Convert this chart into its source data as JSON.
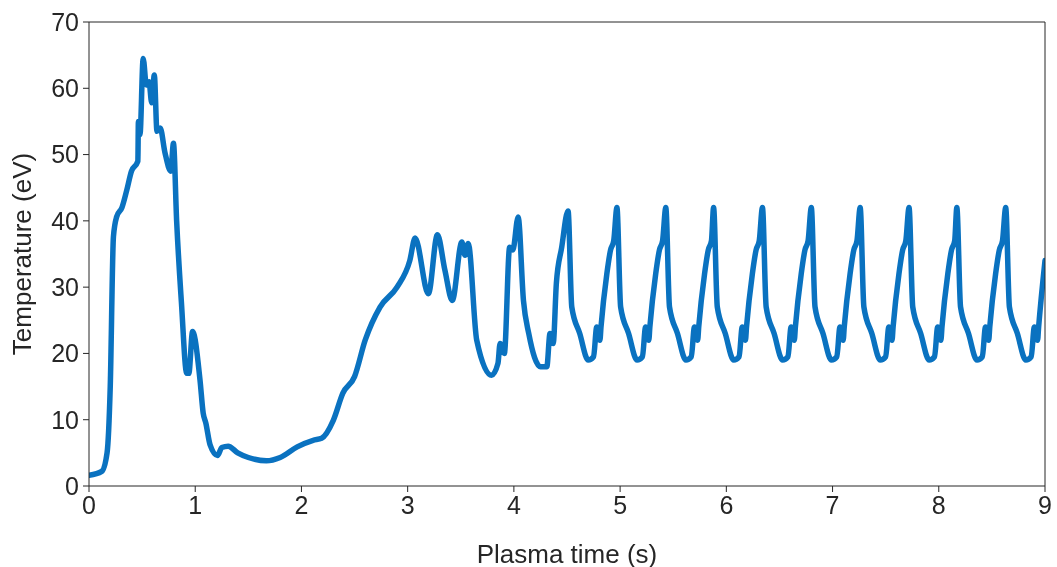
{
  "chart_data": {
    "type": "line",
    "xlabel": "Plasma time (s)",
    "ylabel": "Temperature (eV)",
    "xlim": [
      0,
      9
    ],
    "ylim": [
      0,
      70
    ],
    "xticks": [
      0,
      1,
      2,
      3,
      4,
      5,
      6,
      7,
      8,
      9
    ],
    "yticks": [
      0,
      10,
      20,
      30,
      40,
      50,
      60,
      70
    ],
    "grid": false,
    "legend": false,
    "marker": "none",
    "line_style": "solid",
    "series": [
      {
        "color": "#0a72c0",
        "x": [
          0,
          0.12,
          0.17,
          0.2,
          0.23,
          0.26,
          0.31,
          0.355,
          0.4,
          0.46,
          0.465,
          0.48,
          0.51,
          0.54,
          0.565,
          0.59,
          0.615,
          0.64,
          0.67,
          0.715,
          0.77,
          0.795,
          0.825,
          0.87,
          0.92,
          0.94,
          0.975,
          1.045,
          1.075,
          1.1,
          1.14,
          1.21,
          1.25,
          1.31,
          1.4,
          1.5,
          1.67,
          1.8,
          1.96,
          2.11,
          2.19,
          2.3,
          2.39,
          2.5,
          2.6,
          2.74,
          2.9,
          3.02,
          3.07,
          3.195,
          3.28,
          3.35,
          3.42,
          3.51,
          3.54,
          3.57,
          3.65,
          3.79,
          3.85,
          3.87,
          3.91,
          3.96,
          3.99,
          4.04,
          4.09,
          4.14,
          4.25,
          4.31,
          4.34,
          4.37,
          4.4,
          4.45,
          4.51,
          4.545,
          4.62,
          4.7,
          4.75,
          4.78,
          4.81,
          4.82,
          4.875,
          4.91,
          4.94,
          4.97,
          5.005,
          5.08,
          5.16,
          5.21,
          5.24,
          5.27,
          5.28,
          5.335,
          5.37,
          5.4,
          5.43,
          5.465,
          5.54,
          5.62,
          5.67,
          5.7,
          5.73,
          5.74,
          5.795,
          5.83,
          5.86,
          5.88,
          5.915,
          5.99,
          6.07,
          6.12,
          6.15,
          6.18,
          6.19,
          6.245,
          6.28,
          6.31,
          6.34,
          6.375,
          6.45,
          6.53,
          6.58,
          6.61,
          6.64,
          6.65,
          6.705,
          6.74,
          6.77,
          6.8,
          6.835,
          6.91,
          6.99,
          7.04,
          7.07,
          7.1,
          7.11,
          7.165,
          7.2,
          7.23,
          7.26,
          7.295,
          7.37,
          7.45,
          7.5,
          7.53,
          7.56,
          7.57,
          7.625,
          7.66,
          7.69,
          7.72,
          7.755,
          7.83,
          7.91,
          7.96,
          7.99,
          8.02,
          8.03,
          8.085,
          8.12,
          8.15,
          8.17,
          8.205,
          8.28,
          8.36,
          8.41,
          8.44,
          8.47,
          8.48,
          8.535,
          8.57,
          8.6,
          8.63,
          8.665,
          8.74,
          8.82,
          8.87,
          8.9,
          8.93,
          8.94,
          9.0
        ],
        "values": [
          1.6,
          2.2,
          5,
          15,
          37.6,
          40.6,
          42,
          44.6,
          47.5,
          49,
          55,
          53,
          64.5,
          60.5,
          61,
          57.8,
          62,
          53.5,
          54,
          50.3,
          47.5,
          51.7,
          40,
          27.7,
          17,
          17,
          23.3,
          16,
          11,
          9.5,
          6.2,
          4.6,
          5.8,
          6,
          5,
          4.3,
          3.8,
          4.3,
          5.9,
          6.9,
          7.2,
          9.9,
          14,
          16.5,
          22,
          27,
          30,
          34,
          37.4,
          29,
          37.9,
          32.6,
          28,
          36.8,
          34.8,
          36.6,
          22,
          16.7,
          18.5,
          21.5,
          20,
          36,
          35.6,
          40.6,
          28,
          23,
          18,
          18,
          23,
          21.5,
          30.6,
          36,
          41.5,
          27,
          23,
          19,
          19.5,
          24,
          22,
          24,
          32,
          35.6,
          37,
          42,
          27,
          23,
          19,
          19.5,
          24,
          22,
          24,
          32,
          35.6,
          37,
          42,
          27,
          23,
          19,
          19.5,
          24,
          22,
          24,
          32,
          35.6,
          37,
          42,
          27,
          23,
          19,
          19.5,
          24,
          22,
          24,
          32,
          35.6,
          37,
          42,
          27,
          23,
          19,
          19.5,
          24,
          22,
          24,
          32,
          35.6,
          37,
          42,
          27,
          23,
          19,
          19.5,
          24,
          22,
          24,
          32,
          35.6,
          37,
          42,
          27,
          23,
          19,
          19.5,
          24,
          22,
          24,
          32,
          35.6,
          37,
          42,
          27,
          23,
          19,
          19.5,
          24,
          22,
          24,
          32,
          35.6,
          37,
          42,
          27,
          23,
          19,
          19.5,
          24,
          22,
          24,
          32,
          35.6,
          37,
          42,
          27,
          23,
          19,
          19.5,
          24,
          22,
          24,
          34
        ]
      }
    ]
  }
}
